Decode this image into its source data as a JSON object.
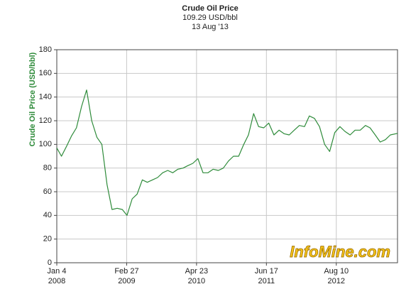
{
  "chart_data": {
    "type": "line",
    "title": "Crude Oil Price",
    "subtitle": "109.29 USD/bbl",
    "date_label": "13 Aug '13",
    "y_label": "Crude Oil Price (USD/bbl)",
    "watermark": "InfoMine.com",
    "color": "#2e8b3a",
    "grid": true,
    "ylim": [
      0,
      180
    ],
    "yticks": [
      0,
      20,
      40,
      60,
      80,
      100,
      120,
      140,
      160,
      180
    ],
    "xlim": [
      "2008-01-04",
      "2013-08-13"
    ],
    "xticks": [
      {
        "value": "2008-01-04",
        "label": [
          "Jan 4",
          "2008"
        ]
      },
      {
        "value": "2009-02-27",
        "label": [
          "Feb 27",
          "2009"
        ]
      },
      {
        "value": "2010-04-23",
        "label": [
          "Apr 23",
          "2010"
        ]
      },
      {
        "value": "2011-06-17",
        "label": [
          "Jun 17",
          "2011"
        ]
      },
      {
        "value": "2012-08-10",
        "label": [
          "Aug 10",
          "2012"
        ]
      }
    ],
    "x": [
      "2008-01-04",
      "2008-02-01",
      "2008-03-01",
      "2008-04-01",
      "2008-05-01",
      "2008-06-01",
      "2008-07-01",
      "2008-08-01",
      "2008-09-01",
      "2008-10-01",
      "2008-11-01",
      "2008-12-01",
      "2009-01-01",
      "2009-02-01",
      "2009-03-01",
      "2009-04-01",
      "2009-05-01",
      "2009-06-01",
      "2009-07-01",
      "2009-08-01",
      "2009-09-01",
      "2009-10-01",
      "2009-11-01",
      "2009-12-01",
      "2010-01-01",
      "2010-02-01",
      "2010-03-01",
      "2010-04-01",
      "2010-05-01",
      "2010-06-01",
      "2010-07-01",
      "2010-08-01",
      "2010-09-01",
      "2010-10-01",
      "2010-11-01",
      "2010-12-01",
      "2011-01-01",
      "2011-02-01",
      "2011-03-01",
      "2011-04-01",
      "2011-05-01",
      "2011-06-01",
      "2011-07-01",
      "2011-08-01",
      "2011-09-01",
      "2011-10-01",
      "2011-11-01",
      "2011-12-01",
      "2012-01-01",
      "2012-02-01",
      "2012-03-01",
      "2012-04-01",
      "2012-05-01",
      "2012-06-01",
      "2012-07-01",
      "2012-08-01",
      "2012-09-01",
      "2012-10-01",
      "2012-11-01",
      "2012-12-01",
      "2013-01-01",
      "2013-02-01",
      "2013-03-01",
      "2013-04-01",
      "2013-05-01",
      "2013-06-01",
      "2013-07-01",
      "2013-08-13"
    ],
    "values": [
      97,
      90,
      98,
      107,
      114,
      132,
      146,
      120,
      106,
      100,
      66,
      45,
      46,
      45,
      40,
      54,
      58,
      70,
      68,
      70,
      72,
      76,
      78,
      76,
      79,
      80,
      82,
      84,
      88,
      76,
      76,
      79,
      78,
      80,
      86,
      90,
      90,
      100,
      108,
      126,
      115,
      114,
      118,
      108,
      112,
      109,
      108,
      112,
      116,
      115,
      124,
      122,
      115,
      100,
      94,
      110,
      115,
      111,
      108,
      112,
      112,
      116,
      114,
      108,
      102,
      104,
      108,
      109.29
    ]
  }
}
